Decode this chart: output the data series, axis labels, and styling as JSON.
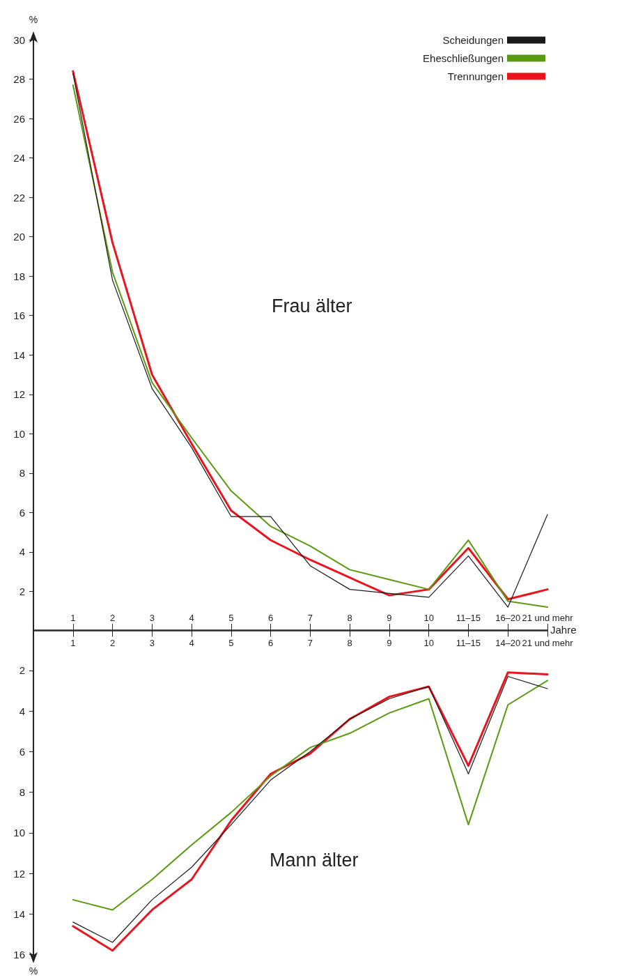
{
  "chart_data": [
    {
      "type": "line",
      "ylabel": "%",
      "annotations": [
        "Frau älter"
      ],
      "categories": [
        "1",
        "2",
        "3",
        "4",
        "5",
        "6",
        "7",
        "8",
        "9",
        "10",
        "11–15",
        "16–20",
        "21 und mehr"
      ],
      "series": [
        {
          "name": "Scheidungen",
          "color": "#1a1a1a",
          "values": [
            28.3,
            17.8,
            12.3,
            9.3,
            5.8,
            5.8,
            3.3,
            2.1,
            1.9,
            1.7,
            3.8,
            1.2,
            5.9
          ]
        },
        {
          "name": "Eheschließungen",
          "color": "#5a9a10",
          "values": [
            27.7,
            18.2,
            12.6,
            9.8,
            7.1,
            5.3,
            4.3,
            3.1,
            2.6,
            2.1,
            4.6,
            1.5,
            1.2
          ]
        },
        {
          "name": "Trennungen",
          "color": "#e8141e",
          "values": [
            28.4,
            19.7,
            13.0,
            9.5,
            6.1,
            4.6,
            3.6,
            2.7,
            1.8,
            2.1,
            4.2,
            1.6,
            2.1
          ]
        }
      ],
      "ylim": [
        0,
        30
      ],
      "yticks": [
        2,
        4,
        6,
        8,
        10,
        12,
        14,
        16,
        18,
        20,
        22,
        24,
        26,
        28,
        30
      ],
      "grid": false,
      "legend": "top right",
      "marker": "none",
      "line_style": "solid"
    },
    {
      "type": "line",
      "ylabel": "%",
      "xlabel": "Jahre",
      "annotations": [
        "Mann älter"
      ],
      "categories": [
        "1",
        "2",
        "3",
        "4",
        "5",
        "6",
        "7",
        "8",
        "9",
        "10",
        "11–15",
        "14–20",
        "21 und mehr"
      ],
      "series": [
        {
          "color": "#1a1a1a",
          "values": [
            14.4,
            15.4,
            13.3,
            11.7,
            9.6,
            7.4,
            6.0,
            4.4,
            3.4,
            2.8,
            7.1,
            2.3,
            2.9
          ]
        },
        {
          "color": "#5a9a10",
          "values": [
            13.3,
            13.8,
            12.3,
            10.6,
            9.0,
            7.2,
            5.8,
            5.1,
            4.1,
            3.4,
            9.6,
            3.7,
            2.5
          ]
        },
        {
          "color": "#e8141e",
          "values": [
            14.6,
            15.8,
            13.8,
            12.3,
            9.4,
            7.1,
            6.1,
            4.4,
            3.3,
            2.8,
            6.7,
            2.1,
            2.2
          ]
        }
      ],
      "ylim": [
        16,
        0
      ],
      "yticks": [
        2,
        4,
        6,
        8,
        10,
        12,
        14,
        16
      ],
      "grid": false,
      "legend": false,
      "marker": "none",
      "line_style": "solid"
    }
  ]
}
